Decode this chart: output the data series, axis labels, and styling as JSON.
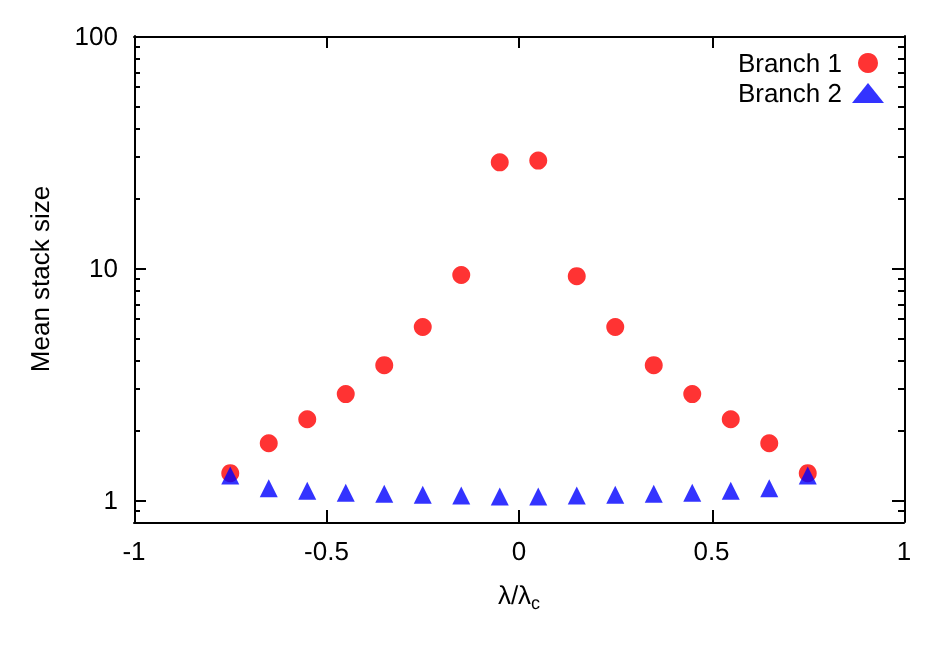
{
  "chart_data": {
    "type": "scatter",
    "xlabel": "λ/λ$_{c}$",
    "ylabel": "Mean stack size",
    "x": [
      -0.75,
      -0.65,
      -0.55,
      -0.45,
      -0.35,
      -0.25,
      -0.15,
      -0.05,
      0.05,
      0.15,
      0.25,
      0.35,
      0.45,
      0.55,
      0.65,
      0.75
    ],
    "series": [
      {
        "name": "Branch 1",
        "color": "#ff0000",
        "marker": "circle",
        "values": [
          1.3,
          1.75,
          2.22,
          2.85,
          3.8,
          5.55,
          9.3,
          28.5,
          29,
          9.2,
          5.55,
          3.8,
          2.85,
          2.22,
          1.75,
          1.3
        ]
      },
      {
        "name": "Branch 2",
        "color": "#0000ff",
        "marker": "triangle",
        "values": [
          1.27,
          1.12,
          1.09,
          1.07,
          1.06,
          1.05,
          1.04,
          1.03,
          1.03,
          1.04,
          1.05,
          1.06,
          1.07,
          1.09,
          1.12,
          1.27
        ]
      }
    ],
    "xlim": [
      -1,
      1
    ],
    "xticks": [
      -1,
      -0.5,
      0,
      0.5,
      1
    ],
    "ylim": [
      0.8,
      100
    ],
    "yticks": [
      1,
      10,
      100
    ],
    "log": "y",
    "grid": false,
    "legend": "top right"
  }
}
